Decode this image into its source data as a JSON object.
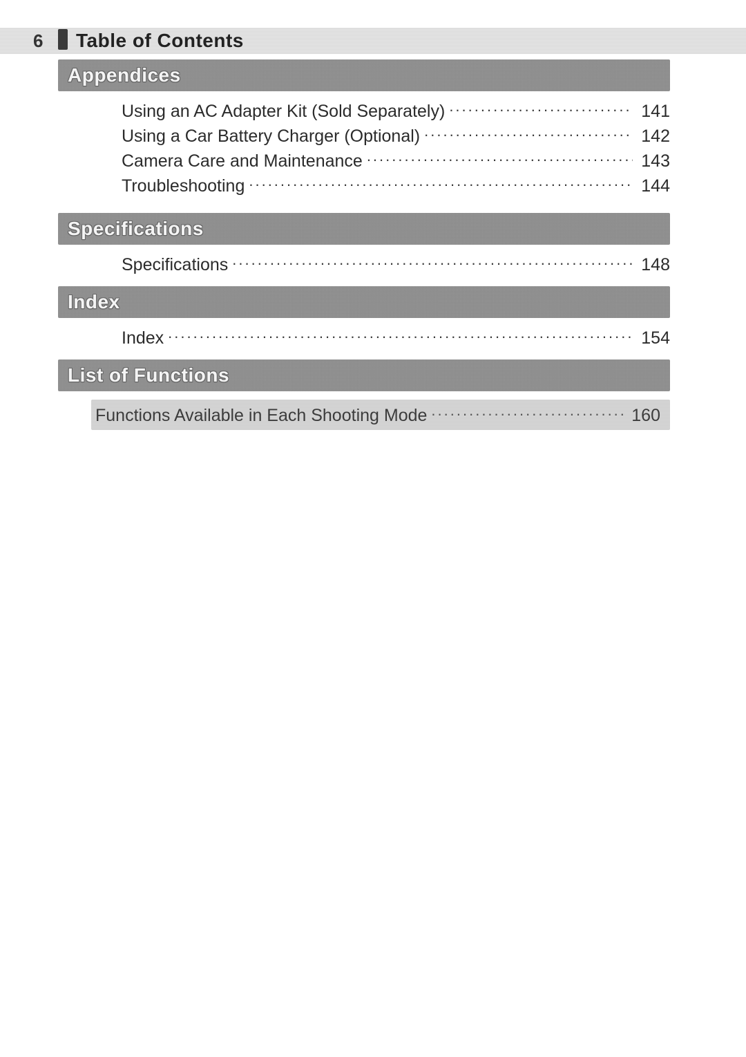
{
  "page_number": "6",
  "page_title": "Table of Contents",
  "colors": {
    "band_bg": "#8f8f8f",
    "band_text": "#f4f4f4",
    "text": "#2a2a2a",
    "highlight_bg": "#d6d6d6",
    "header_stripe": "#e0e0e0",
    "page_bg": "#ffffff"
  },
  "typography": {
    "title_fontsize_pt": 21,
    "entry_fontsize_pt": 19,
    "band_fontsize_pt": 21
  },
  "sections": [
    {
      "title": "Appendices",
      "entries": [
        {
          "label": "Using an AC Adapter Kit (Sold Separately)",
          "page": "141"
        },
        {
          "label": "Using a Car Battery Charger (Optional)",
          "page": "142"
        },
        {
          "label": "Camera Care and Maintenance",
          "page": "143"
        },
        {
          "label": "Troubleshooting",
          "page": "144"
        }
      ]
    },
    {
      "title": "Specifications",
      "entries": [
        {
          "label": "Specifications",
          "page": "148"
        }
      ]
    },
    {
      "title": "Index",
      "entries": [
        {
          "label": "Index",
          "page": "154"
        }
      ]
    },
    {
      "title": "List of Functions",
      "highlighted": true,
      "entries": [
        {
          "label": "Functions Available in Each Shooting Mode",
          "page": "160"
        }
      ]
    }
  ]
}
